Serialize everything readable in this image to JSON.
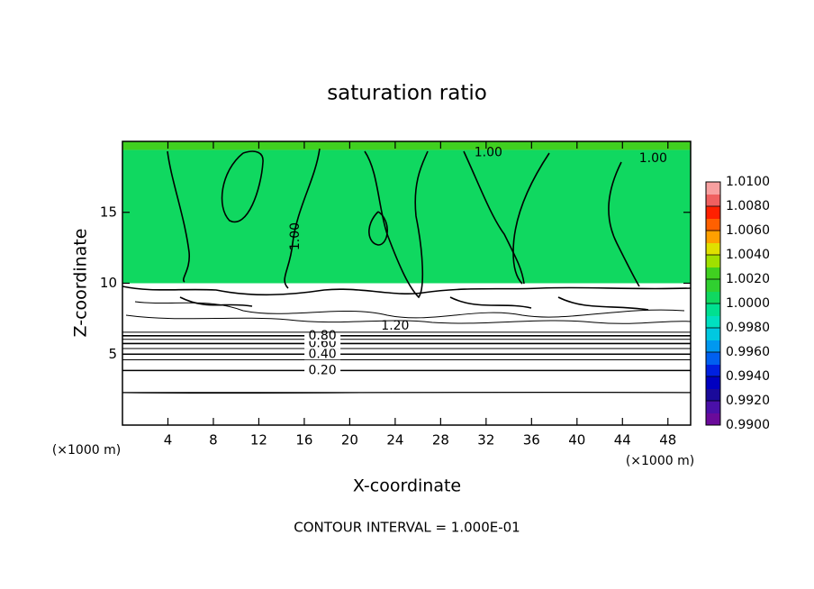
{
  "chart_data": {
    "type": "contour",
    "title": "saturation ratio",
    "x_label": "X-coordinate",
    "y_label": "Z-coordinate",
    "x_unit": "(×1000 m)",
    "y_unit": "(×1000 m)",
    "footer": "CONTOUR INTERVAL = 1.000E-01",
    "xlim": [
      0,
      50
    ],
    "xticks": [
      4,
      8,
      12,
      16,
      20,
      24,
      28,
      32,
      36,
      40,
      44,
      48
    ],
    "ylim": [
      0,
      20
    ],
    "yticks": [
      5,
      10,
      15
    ],
    "colorbar": {
      "clim": [
        0.99,
        1.01
      ],
      "colors": [
        "#6a0a9a",
        "#4a10a8",
        "#1a0a9a",
        "#0000c0",
        "#0020e0",
        "#0060f0",
        "#0098f0",
        "#00c8e0",
        "#00e0c0",
        "#00e090",
        "#10d860",
        "#30d030",
        "#40d020",
        "#a0e000",
        "#e0e000",
        "#ffa000",
        "#ff6000",
        "#ff2000",
        "#f06060",
        "#f8a0a0"
      ],
      "ticks": [
        {
          "value": 0.99,
          "label": "0.9900"
        },
        {
          "value": 0.992,
          "label": "0.9920"
        },
        {
          "value": 0.994,
          "label": "0.9940"
        },
        {
          "value": 0.996,
          "label": "0.9960"
        },
        {
          "value": 0.998,
          "label": "0.9980"
        },
        {
          "value": 1.0,
          "label": "1.0000"
        },
        {
          "value": 1.002,
          "label": "1.0020"
        },
        {
          "value": 1.004,
          "label": "1.0040"
        },
        {
          "value": 1.006,
          "label": "1.0060"
        },
        {
          "value": 1.008,
          "label": "1.0080"
        },
        {
          "value": 1.01,
          "label": "1.0100"
        }
      ]
    },
    "fills": [
      {
        "value": 1.0005,
        "zlim": [
          10,
          19.4
        ]
      },
      {
        "value": 1.003,
        "zlim": [
          19.4,
          20
        ]
      }
    ],
    "contours": [
      {
        "level": 0.1,
        "z": 2.3
      },
      {
        "level": {
          "value": 0.2,
          "label": "0.20"
        },
        "z": 3.85
      },
      {
        "level": 0.3,
        "z": 4.6
      },
      {
        "level": {
          "value": 0.4,
          "label": "0.40"
        },
        "z": 5.0
      },
      {
        "level": 0.5,
        "z": 5.4
      },
      {
        "level": {
          "value": 0.6,
          "label": "0.60"
        },
        "z": 5.75
      },
      {
        "level": 0.7,
        "z": 6.05
      },
      {
        "level": {
          "value": 0.8,
          "label": "0.80"
        },
        "z": 6.3
      },
      {
        "level": 0.9,
        "z": 6.55
      }
    ],
    "annotations": [
      {
        "text": "1.00",
        "x": 32.2,
        "z": 19.2
      },
      {
        "text": "1.00",
        "x": 46.7,
        "z": 18.8
      },
      {
        "text": "1.00",
        "x": 15.2,
        "z": 13.3,
        "rotation": -90
      },
      {
        "text": "1.20",
        "x": 24.0,
        "z": 7.0
      }
    ]
  }
}
